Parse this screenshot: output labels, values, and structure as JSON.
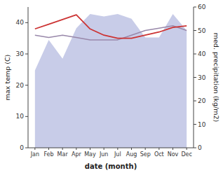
{
  "chart_data": {
    "type": "line",
    "categories": [
      "Jan",
      "Feb",
      "Mar",
      "Apr",
      "May",
      "Jun",
      "Jul",
      "Aug",
      "Sep",
      "Oct",
      "Nov",
      "Dec"
    ],
    "xlabel": "date (month)",
    "ylabel": "max temp (C)",
    "y2label": "med. precipitation (kg/m2)",
    "ylim": [
      0,
      45
    ],
    "yticks": [
      0,
      10,
      20,
      30,
      40
    ],
    "y2lim": [
      0,
      60
    ],
    "y2ticks": [
      0,
      10,
      20,
      30,
      40,
      50,
      60
    ],
    "series": [
      {
        "type": "area",
        "axis": "y2",
        "color": "#c8cce8",
        "values": [
          33,
          46,
          38,
          51,
          57,
          56,
          57,
          55,
          47,
          47,
          57,
          50
        ]
      },
      {
        "type": "line",
        "axis": "y2",
        "color": "#9988aa",
        "values": [
          48,
          47,
          48,
          47,
          46,
          46,
          46,
          48,
          50,
          51,
          52,
          50
        ]
      },
      {
        "type": "line",
        "color": "#cc3333",
        "values": [
          38.0,
          39.5,
          41.0,
          42.5,
          38.0,
          36.0,
          35.0,
          35.0,
          36.0,
          37.0,
          38.5,
          39.0
        ]
      }
    ]
  }
}
